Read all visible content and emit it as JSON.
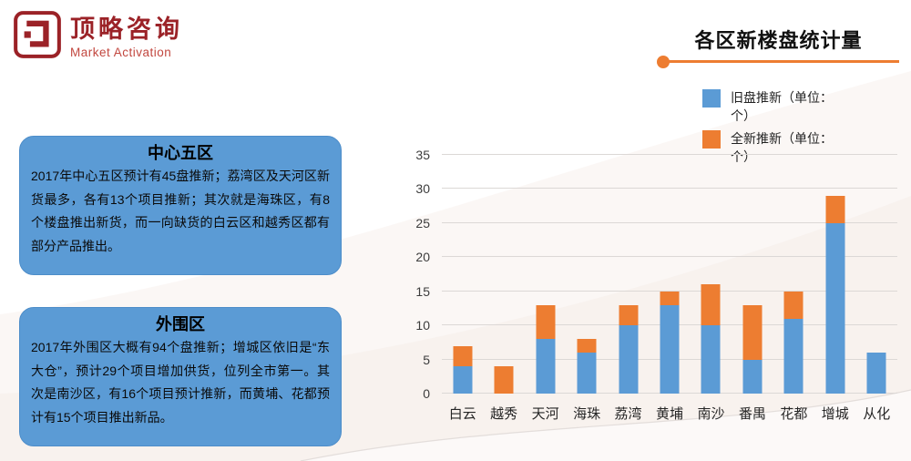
{
  "logo": {
    "title": "顶略咨询",
    "subtitle": "Market Activation"
  },
  "header": {
    "title": "各区新楼盘统计量"
  },
  "callouts": [
    {
      "title": "中心五区",
      "body": "2017年中心五区预计有45盘推新；荔湾区及天河区新货最多，各有13个项目推新；其次就是海珠区，有8个楼盘推出新货，而一向缺货的白云区和越秀区都有部分产品推出。"
    },
    {
      "title": "外围区",
      "body": "2017年外围区大概有94个盘推新；增城区依旧是“东大仓”，预计29个项目增加供货，位列全市第一。其次是南沙区，有16个项目预计推新，而黄埔、花都预计有15个项目推出新品。"
    }
  ],
  "chart_data": {
    "type": "bar",
    "stacked": true,
    "title": "各区新楼盘统计量",
    "categories": [
      "白云",
      "越秀",
      "天河",
      "海珠",
      "荔湾",
      "黄埔",
      "南沙",
      "番禺",
      "花都",
      "增城",
      "从化"
    ],
    "series": [
      {
        "name": "旧盘推新（单位：个）",
        "color": "#5b9bd5",
        "values": [
          4,
          0,
          8,
          6,
          10,
          13,
          10,
          5,
          11,
          25,
          6
        ]
      },
      {
        "name": "全新推新（单位：个）",
        "color": "#ed7d31",
        "values": [
          3,
          4,
          5,
          2,
          3,
          2,
          6,
          8,
          4,
          4,
          0
        ]
      }
    ],
    "totals": [
      7,
      4,
      13,
      8,
      13,
      15,
      16,
      13,
      15,
      29,
      6
    ],
    "ylim": [
      0,
      35
    ],
    "yticks": [
      0,
      5,
      10,
      15,
      20,
      25,
      30,
      35
    ],
    "xlabel": "",
    "ylabel": "",
    "grid": true,
    "legend_position": "top-right"
  },
  "colors": {
    "bar_blue": "#5b9bd5",
    "bar_orange": "#ed7d31",
    "accent_orange": "#ed7d31",
    "logo_red": "#9b2227",
    "callout_blue": "#5b9bd5",
    "gridline": "#dcd8d6"
  }
}
